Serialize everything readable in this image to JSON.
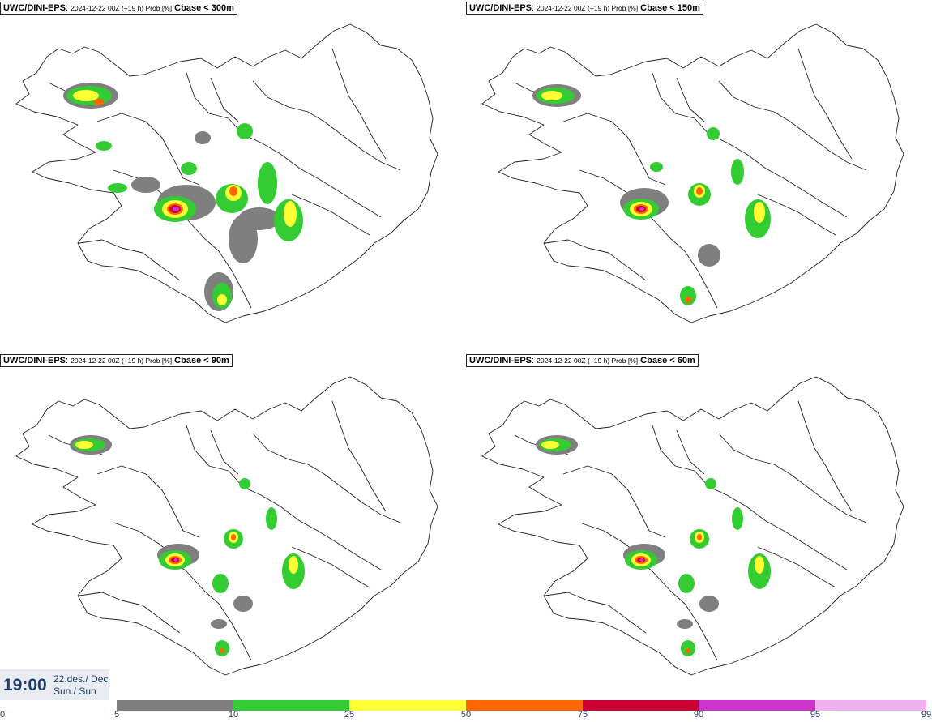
{
  "panels": [
    {
      "model": "UWC/DINI-EPS",
      "meta": "2024-12-22 00Z (+19 h) Prob [%]",
      "variable": "Cbase < 300m"
    },
    {
      "model": "UWC/DINI-EPS",
      "meta": "2024-12-22 00Z (+19 h) Prob [%]",
      "variable": "Cbase < 150m"
    },
    {
      "model": "UWC/DINI-EPS",
      "meta": "2024-12-22 00Z (+19 h) Prob [%]",
      "variable": "Cbase < 90m"
    },
    {
      "model": "UWC/DINI-EPS",
      "meta": "2024-12-22 00Z (+19 h) Prob [%]",
      "variable": "Cbase < 60m"
    }
  ],
  "timebox": {
    "time": "19:00",
    "date_line1": "22.des./ Dec",
    "date_line2": "Sun./ Sun"
  },
  "legend": {
    "ticks": [
      "0",
      "5",
      "10",
      "25",
      "50",
      "75",
      "90",
      "95",
      "99"
    ],
    "colors": [
      "#b5b5b5",
      "#7f7f7f",
      "#33cc33",
      "#ffff33",
      "#ff6600",
      "#cc0033",
      "#cc33cc",
      "#f0b0f0"
    ]
  }
}
